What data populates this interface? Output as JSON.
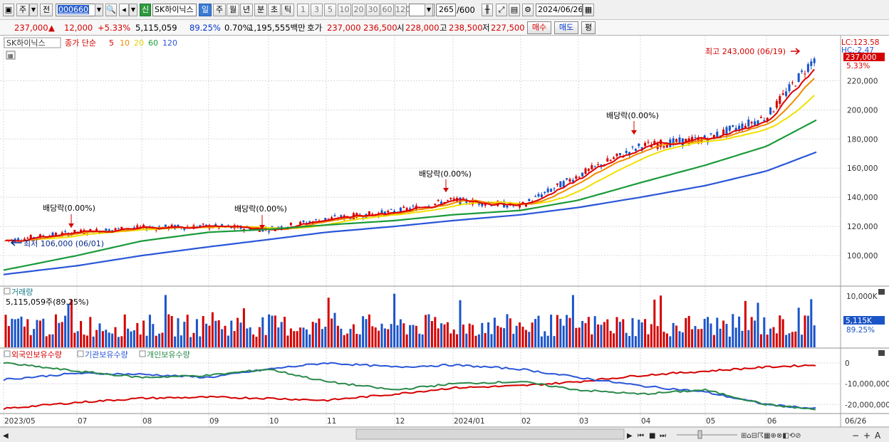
{
  "toolbar": {
    "period_label": "주",
    "prev_label": "전",
    "code": "000660",
    "new_badge": "신",
    "stock_name": "SK하이닉스",
    "intervals": [
      "일",
      "주",
      "월",
      "년",
      "분",
      "초",
      "틱"
    ],
    "selected_interval": "일",
    "nums": [
      "1",
      "3",
      "5",
      "10",
      "20",
      "30",
      "60",
      "120"
    ],
    "page_count": "265",
    "page_total": "/600",
    "date": "2024/06/26"
  },
  "quote": {
    "price": "237,000",
    "change": "12,000",
    "change_pct": "+5.33%",
    "volume": "5,115,059",
    "vol_ratio": "89.25%",
    "turnover_pct": "0.70%",
    "amount": "1,195,555백만",
    "ask_label": "호가",
    "ask": "237,000",
    "bid": "236,500",
    "open_label": "시",
    "open": "228,000",
    "high_label": "고",
    "high": "238,500",
    "low_label": "저",
    "low": "227,500",
    "buy_label": "매수",
    "sell_label": "매도",
    "eval_label": "평"
  },
  "colors": {
    "up": "#d40000",
    "down": "#1a54c8",
    "ma5": "#e00000",
    "ma10": "#f08a00",
    "ma20": "#f0e000",
    "ma60": "#1a9a3a",
    "ma120": "#2a56d8",
    "foreign": "#d40000",
    "institution": "#2a56d8",
    "individual": "#2a8a4a"
  },
  "price_panel": {
    "stock_label": "SK하이닉스",
    "ma_title": "종가 단순",
    "ma_periods": [
      "5",
      "10",
      "20",
      "60",
      "120"
    ],
    "lc_label": "LC:123.58",
    "hc_label": "HC:-2.47",
    "last_price": "237,000",
    "last_pct": "5.33%",
    "high_annotation": "최고 243,000 (06/19)",
    "low_annotation": "최저 106,000 (06/01)",
    "dividend_label": "배당락(0.00%)"
  },
  "volume_panel": {
    "title": "거래량",
    "value_label": "5,115,059주(89.25%)",
    "last_value": "5,115K",
    "last_pct": "89.25%"
  },
  "holdings_panel": {
    "legend": [
      "외국인보유수량",
      "기관보유수량",
      "개인보유수량"
    ]
  },
  "x_axis_labels": [
    "2023/05",
    "07",
    "08",
    "09",
    "10",
    "11",
    "12",
    "2024/01",
    "02",
    "03",
    "04",
    "05",
    "06",
    "06/26"
  ],
  "chart_data": {
    "type": "line",
    "ylim": [
      80000,
      250000
    ],
    "y_ticks": [
      {
        "value": 100000,
        "label": "100,000"
      },
      {
        "value": 120000,
        "label": "120,000"
      },
      {
        "value": 140000,
        "label": "140,000"
      },
      {
        "value": 160000,
        "label": "160,000"
      },
      {
        "value": 180000,
        "label": "180,000"
      },
      {
        "value": 200000,
        "label": "200,000"
      },
      {
        "value": 220000,
        "label": "220,000"
      }
    ],
    "x_months": [
      "2023/05",
      "07",
      "08",
      "09",
      "10",
      "11",
      "12",
      "2024/01",
      "02",
      "03",
      "04",
      "05",
      "06"
    ],
    "close_by_month": [
      {
        "x": "2023/05",
        "y": 110000
      },
      {
        "x": "2023/06",
        "y": 116000
      },
      {
        "x": "2023/07",
        "y": 119000
      },
      {
        "x": "2023/08",
        "y": 120000
      },
      {
        "x": "2023/09",
        "y": 118000
      },
      {
        "x": "2023/10",
        "y": 125000
      },
      {
        "x": "2023/11",
        "y": 130000
      },
      {
        "x": "2023/12",
        "y": 138000
      },
      {
        "x": "2024/01",
        "y": 134000
      },
      {
        "x": "2024/02",
        "y": 155000
      },
      {
        "x": "2024/03",
        "y": 175000
      },
      {
        "x": "2024/04",
        "y": 180000
      },
      {
        "x": "2024/05",
        "y": 195000
      },
      {
        "x": "2024/06",
        "y": 237000
      }
    ],
    "ma60_by_month": [
      90000,
      100000,
      110000,
      116000,
      118000,
      121000,
      124000,
      128000,
      131000,
      138000,
      150000,
      162000,
      175000,
      193000
    ],
    "ma120_by_month": [
      87000,
      93000,
      100000,
      106000,
      111000,
      116000,
      120000,
      124000,
      128000,
      133000,
      140000,
      148000,
      158000,
      171000
    ],
    "volume_axis": {
      "max_label": "10,000K",
      "max": 10000000
    },
    "holdings_axis": {
      "ticks": [
        {
          "value": 0,
          "label": "0"
        },
        {
          "value": -10000000,
          "label": "-10,000,000"
        },
        {
          "value": -20000000,
          "label": "-20,000,000"
        }
      ],
      "ylim": [
        -24000000,
        2000000
      ]
    },
    "holdings_series": [
      {
        "name": "외국인보유수량",
        "values": [
          -22000000,
          -19000000,
          -17000000,
          -16500000,
          -17000000,
          -18000000,
          -15000000,
          -12000000,
          -11000000,
          -9000000,
          -6000000,
          -4000000,
          -2000000,
          -1000000
        ]
      },
      {
        "name": "기관보유수량",
        "values": [
          -8000000,
          -5000000,
          -5500000,
          -7000000,
          -3000000,
          0,
          -2000000,
          -1000000,
          -3000000,
          -7000000,
          -11000000,
          -14000000,
          -20000000,
          -22000000
        ]
      },
      {
        "name": "개인보유수량",
        "values": [
          0,
          -4000000,
          -7000000,
          -6000000,
          -3000000,
          -9000000,
          -13000000,
          -10000000,
          -9000000,
          -13000000,
          -15000000,
          -13000000,
          -20000000,
          -22500000
        ]
      }
    ]
  }
}
